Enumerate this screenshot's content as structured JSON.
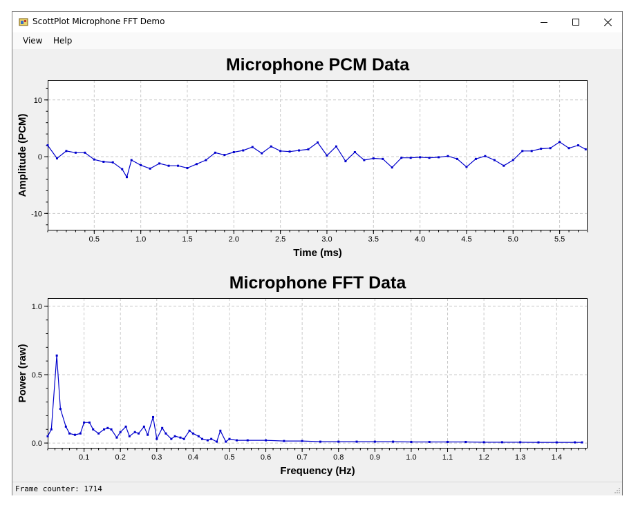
{
  "window": {
    "title": "ScottPlot Microphone FFT Demo"
  },
  "menu": {
    "items": [
      "View",
      "Help"
    ]
  },
  "status": {
    "text": "Frame counter: 1714"
  },
  "colors": {
    "series": "#0000cc",
    "grid": "#c8c8c8"
  },
  "chart_data": [
    {
      "type": "line",
      "title": "Microphone PCM Data",
      "xlabel": "Time (ms)",
      "ylabel": "Amplitude (PCM)",
      "xlim": [
        0,
        5.8
      ],
      "ylim": [
        -13,
        13.5
      ],
      "xticks": [
        "0.5",
        "1.0",
        "1.5",
        "2.0",
        "2.5",
        "3.0",
        "3.5",
        "4.0",
        "4.5",
        "5.0",
        "5.5"
      ],
      "yticks": [
        "10",
        "0",
        "-10"
      ],
      "grid": true,
      "x": [
        0,
        0.1,
        0.2,
        0.3,
        0.4,
        0.5,
        0.6,
        0.7,
        0.8,
        0.85,
        0.9,
        1.0,
        1.1,
        1.2,
        1.3,
        1.4,
        1.5,
        1.6,
        1.7,
        1.8,
        1.9,
        2.0,
        2.1,
        2.2,
        2.3,
        2.4,
        2.5,
        2.6,
        2.7,
        2.8,
        2.9,
        3.0,
        3.1,
        3.2,
        3.3,
        3.4,
        3.5,
        3.6,
        3.7,
        3.8,
        3.9,
        4.0,
        4.1,
        4.2,
        4.3,
        4.4,
        4.5,
        4.6,
        4.7,
        4.8,
        4.9,
        5.0,
        5.1,
        5.2,
        5.3,
        5.4,
        5.5,
        5.6,
        5.7,
        5.78
      ],
      "y": [
        2,
        -0.3,
        1,
        0.7,
        0.7,
        -0.5,
        -0.9,
        -1,
        -2.2,
        -3.6,
        -0.6,
        -1.5,
        -2.1,
        -1.2,
        -1.6,
        -1.6,
        -2,
        -1.3,
        -0.6,
        0.7,
        0.3,
        0.8,
        1.1,
        1.7,
        0.6,
        1.8,
        1,
        0.9,
        1.1,
        1.3,
        2.5,
        0.2,
        1.8,
        -0.8,
        0.8,
        -0.6,
        -0.3,
        -0.4,
        -1.9,
        -0.2,
        -0.2,
        -0.1,
        -0.2,
        -0.1,
        0.1,
        -0.4,
        -1.8,
        -0.4,
        0.1,
        -0.6,
        -1.6,
        -0.6,
        1,
        1,
        1.4,
        1.5,
        2.6,
        1.5,
        2,
        1.3
      ]
    },
    {
      "type": "line",
      "title": "Microphone FFT Data",
      "xlabel": "Frequency (Hz)",
      "ylabel": "Power (raw)",
      "xlim": [
        0,
        1.485
      ],
      "ylim": [
        -0.04,
        1.06
      ],
      "xticks": [
        "0.1",
        "0.2",
        "0.3",
        "0.4",
        "0.5",
        "0.6",
        "0.7",
        "0.8",
        "0.9",
        "1.0",
        "1.1",
        "1.2",
        "1.3",
        "1.4"
      ],
      "yticks": [
        "1.0",
        "0.5",
        "0.0"
      ],
      "grid": true,
      "x": [
        0,
        0.01,
        0.025,
        0.035,
        0.05,
        0.06,
        0.075,
        0.09,
        0.1,
        0.115,
        0.125,
        0.14,
        0.155,
        0.165,
        0.175,
        0.19,
        0.2,
        0.215,
        0.225,
        0.24,
        0.25,
        0.265,
        0.275,
        0.29,
        0.3,
        0.315,
        0.325,
        0.34,
        0.35,
        0.365,
        0.375,
        0.39,
        0.4,
        0.415,
        0.425,
        0.44,
        0.45,
        0.465,
        0.475,
        0.49,
        0.5,
        0.52,
        0.55,
        0.6,
        0.65,
        0.7,
        0.75,
        0.8,
        0.85,
        0.9,
        0.95,
        1.0,
        1.05,
        1.1,
        1.15,
        1.2,
        1.25,
        1.3,
        1.35,
        1.4,
        1.45,
        1.47
      ],
      "y": [
        0.05,
        0.1,
        0.64,
        0.25,
        0.12,
        0.07,
        0.06,
        0.07,
        0.15,
        0.15,
        0.1,
        0.07,
        0.1,
        0.11,
        0.1,
        0.04,
        0.08,
        0.12,
        0.05,
        0.08,
        0.07,
        0.12,
        0.06,
        0.19,
        0.03,
        0.11,
        0.07,
        0.03,
        0.05,
        0.04,
        0.03,
        0.09,
        0.07,
        0.05,
        0.03,
        0.02,
        0.03,
        0.01,
        0.09,
        0.01,
        0.03,
        0.02,
        0.02,
        0.02,
        0.015,
        0.015,
        0.01,
        0.01,
        0.01,
        0.01,
        0.01,
        0.008,
        0.008,
        0.008,
        0.008,
        0.006,
        0.006,
        0.006,
        0.005,
        0.005,
        0.005,
        0.005
      ]
    }
  ]
}
